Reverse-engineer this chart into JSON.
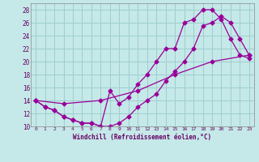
{
  "xlabel": "Windchill (Refroidissement éolien,°C)",
  "background_color": "#c5e8e8",
  "grid_color": "#9ecece",
  "line_color": "#990099",
  "xlim": [
    -0.5,
    23.5
  ],
  "ylim": [
    10,
    29
  ],
  "xticks": [
    0,
    1,
    2,
    3,
    4,
    5,
    6,
    7,
    8,
    9,
    10,
    11,
    12,
    13,
    14,
    15,
    16,
    17,
    18,
    19,
    20,
    21,
    22,
    23
  ],
  "yticks": [
    10,
    12,
    14,
    16,
    18,
    20,
    22,
    24,
    26,
    28
  ],
  "line1_x": [
    0,
    1,
    2,
    3,
    4,
    5,
    6,
    7,
    8,
    9,
    10,
    11,
    12,
    13,
    14,
    15,
    16,
    17,
    18,
    19,
    20,
    21,
    22,
    23
  ],
  "line1_y": [
    14,
    13,
    12.5,
    11.5,
    11,
    10.5,
    10.5,
    10,
    15.5,
    13.5,
    14.5,
    16.5,
    18,
    20,
    22,
    22,
    26,
    26.5,
    28,
    28,
    26.5,
    23.5,
    21,
    20.5
  ],
  "line2_x": [
    0,
    1,
    2,
    3,
    4,
    5,
    6,
    7,
    8,
    9,
    10,
    11,
    12,
    13,
    14,
    15,
    16,
    17,
    18,
    19,
    20,
    21,
    22,
    23
  ],
  "line2_y": [
    14,
    13,
    12.5,
    11.5,
    11,
    10.5,
    10.5,
    10,
    10,
    10.5,
    11.5,
    13,
    14,
    15,
    17,
    18.5,
    20,
    22,
    25.5,
    26,
    27,
    26,
    23.5,
    21
  ],
  "line3_x": [
    0,
    3,
    7,
    11,
    15,
    19,
    23
  ],
  "line3_y": [
    14,
    13.5,
    14,
    15.5,
    18,
    20,
    21
  ]
}
